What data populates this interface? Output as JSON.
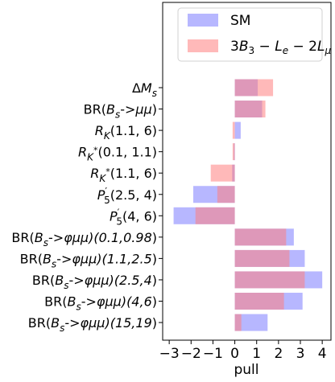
{
  "chart_data": {
    "type": "bar",
    "orientation": "horizontal",
    "xlabel": "pull",
    "xlim": [
      -3.3,
      4.4
    ],
    "xticks": [
      -3,
      -2,
      -1,
      0,
      1,
      2,
      3,
      4
    ],
    "xtick_labels": [
      "−3",
      "−2",
      "−1",
      "0",
      "1",
      "2",
      "3",
      "4"
    ],
    "grid": false,
    "legend_position": "top-right",
    "categories": [
      "ΔM_s",
      "BR(B_s->μμ)",
      "R_K(1.1, 6)",
      "R_K*(0.1, 1.1)",
      "R_K*(1.1, 6)",
      "P′5(2.5, 4)",
      "P′5(4, 6)",
      "BR(B_s->φμμ)(0.1,0.98)",
      "BR(B_s->φμμ)(1.1,2.5)",
      "BR(B_s->φμμ)(2.5,4)",
      "BR(B_s->φμμ)(4,6)",
      "BR(B_s->φμμ)(15,19)"
    ],
    "series": [
      {
        "name": "SM",
        "color": "#7b7bff",
        "values": [
          1.05,
          1.25,
          0.27,
          -0.05,
          -0.12,
          -1.9,
          -2.8,
          2.7,
          3.2,
          4.0,
          3.1,
          1.5
        ]
      },
      {
        "name": "3B3 − Le − 2Lμ",
        "color": "#ff7f7f",
        "values": [
          1.75,
          1.4,
          -0.1,
          -0.1,
          -1.1,
          -0.8,
          -1.8,
          2.35,
          2.5,
          3.2,
          2.25,
          0.3
        ]
      }
    ]
  }
}
